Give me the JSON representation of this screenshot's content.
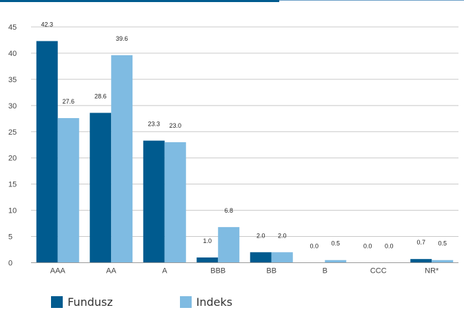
{
  "chart_data": {
    "type": "bar",
    "categories": [
      "AAA",
      "AA",
      "A",
      "BBB",
      "BB",
      "B",
      "CCC",
      "NR*"
    ],
    "series": [
      {
        "name": "Fundusz",
        "values": [
          42.3,
          28.6,
          23.3,
          1.0,
          2.0,
          0.0,
          0.0,
          0.7
        ],
        "labels": [
          "42.3",
          "28.6",
          "23.3",
          "1.0",
          "2.0",
          "0.0",
          "0.0",
          "0.7"
        ],
        "color": "#005b8f"
      },
      {
        "name": "Indeks",
        "values": [
          27.6,
          39.6,
          23.0,
          6.8,
          2.0,
          0.5,
          0.0,
          0.5
        ],
        "labels": [
          "27.6",
          "39.6",
          "23.0",
          "6.8",
          "2.0",
          "0.5",
          "0.0",
          "0.5"
        ],
        "color": "#7fbbe2"
      }
    ],
    "ylim": [
      0,
      45
    ],
    "yticks": [
      "0",
      "5",
      "10",
      "15",
      "20",
      "25",
      "30",
      "35",
      "40",
      "45"
    ],
    "grid": true,
    "legend_position": "bottom-left",
    "title": "",
    "xlabel": "",
    "ylabel": ""
  },
  "legend": {
    "items": [
      {
        "label": "Fundusz",
        "color": "#005b8f"
      },
      {
        "label": "Indeks",
        "color": "#7fbbe2"
      }
    ]
  },
  "colors": {
    "accent_dark": "#005b8f",
    "accent_light": "#7fbbe2",
    "grid": "#c8c8c8",
    "axis": "#999999"
  }
}
